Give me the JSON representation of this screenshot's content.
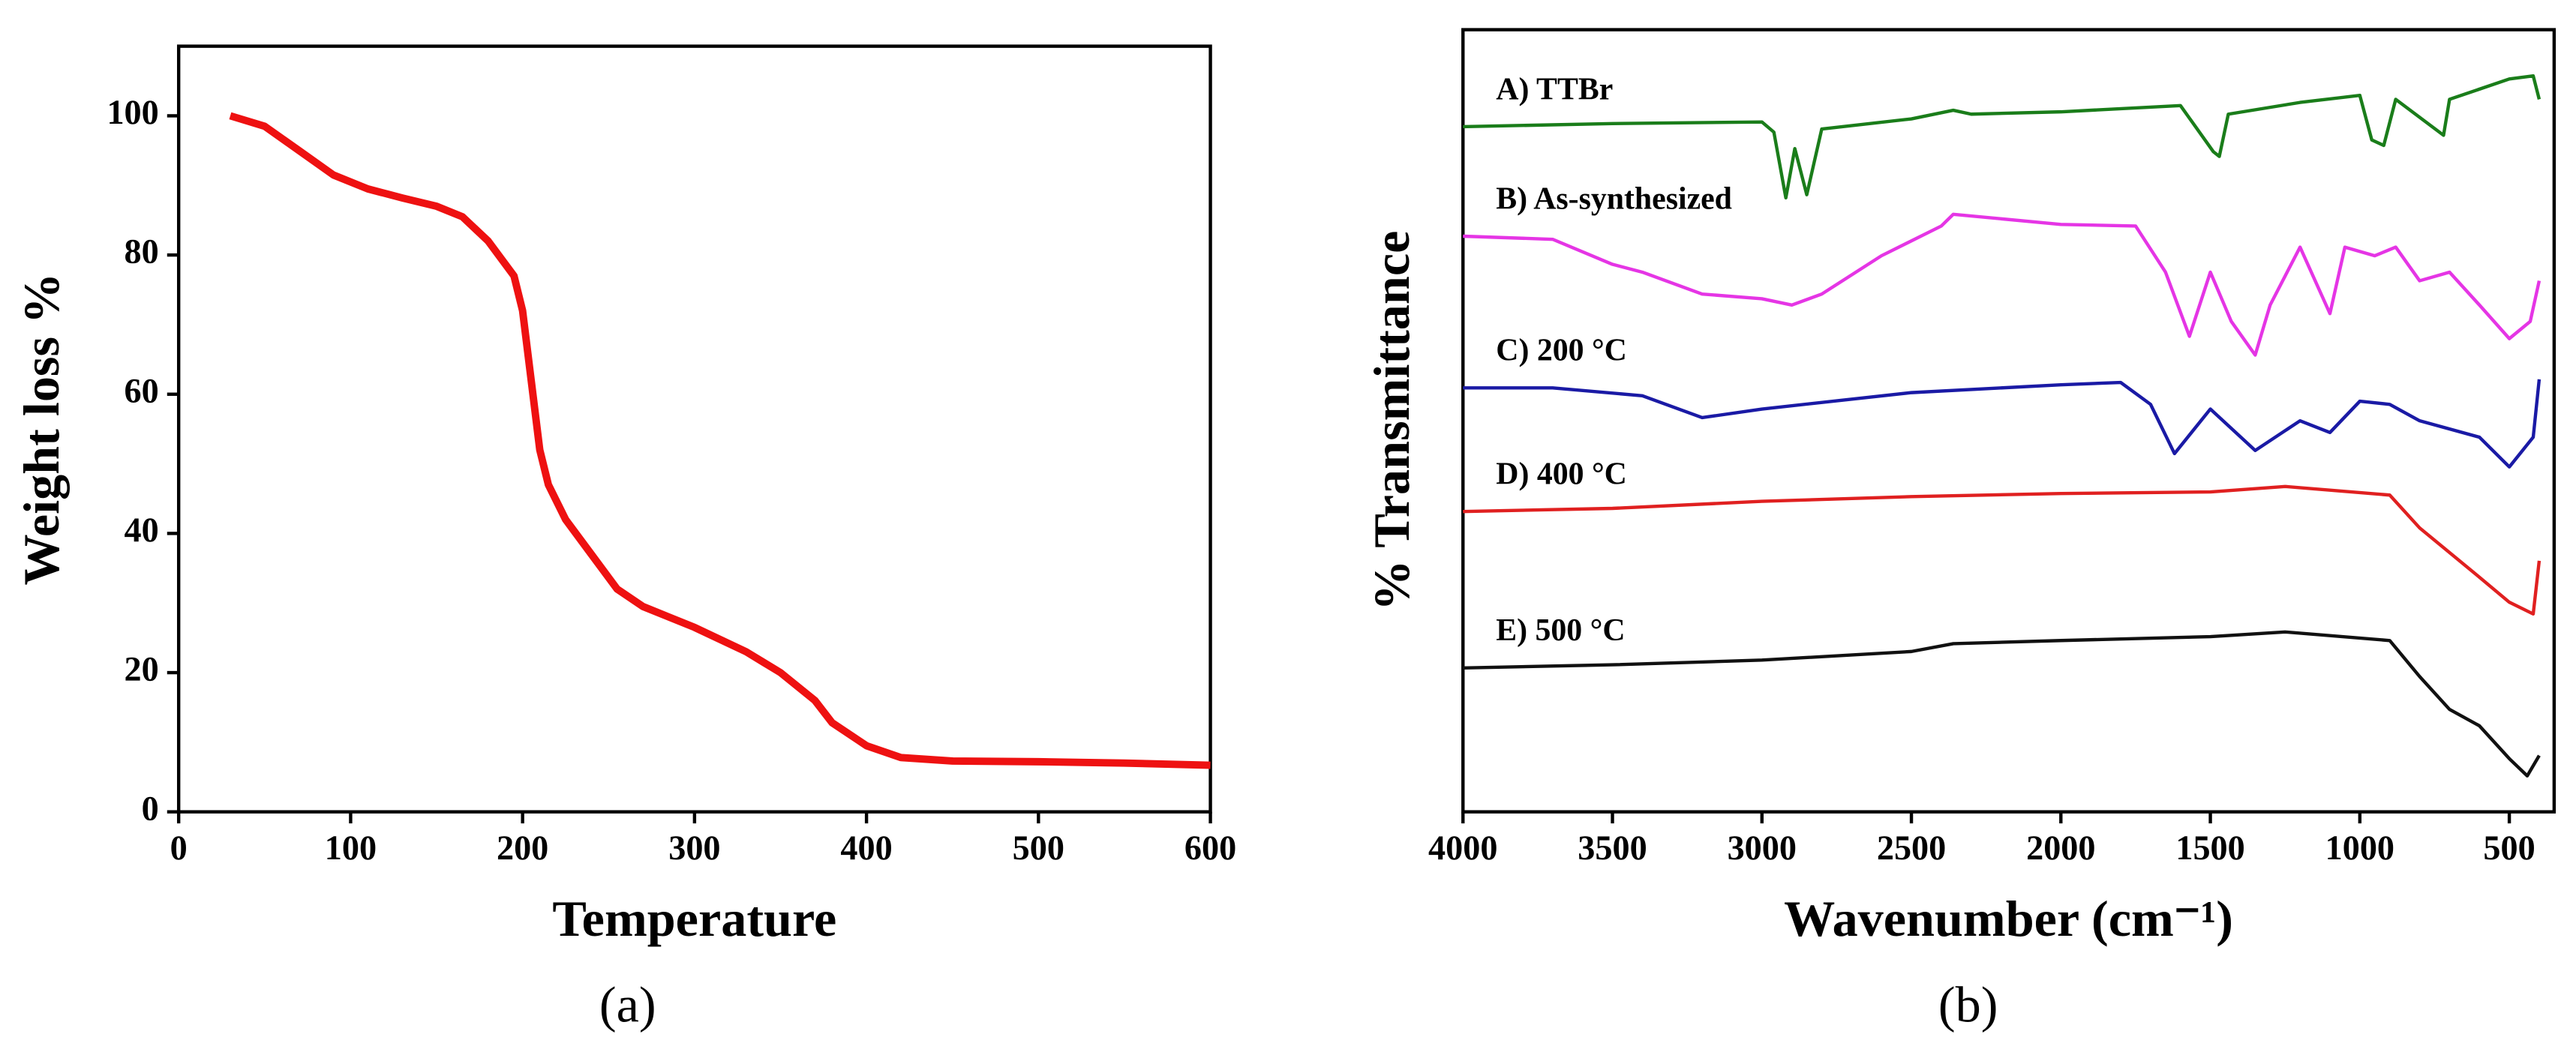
{
  "chart_data": [
    {
      "type": "line",
      "caption": "(a)",
      "xlabel": "Temperature",
      "ylabel": "Weight loss %",
      "xlim": [
        0,
        600
      ],
      "ylim": [
        0,
        110
      ],
      "xticks": [
        0,
        100,
        200,
        300,
        400,
        500,
        600
      ],
      "yticks": [
        0,
        20,
        40,
        60,
        80,
        100
      ],
      "series": [
        {
          "name": null,
          "color": "#ee1111",
          "x": [
            30,
            50,
            70,
            90,
            110,
            130,
            150,
            165,
            180,
            195,
            200,
            205,
            210,
            215,
            225,
            240,
            255,
            270,
            300,
            330,
            350,
            370,
            380,
            400,
            420,
            450,
            500,
            550,
            600
          ],
          "values": [
            100,
            98.5,
            95,
            91.5,
            89.5,
            88.2,
            87,
            85.5,
            82,
            77,
            72,
            62,
            52,
            47,
            42,
            37,
            32,
            29.5,
            26.5,
            23,
            20,
            16,
            12.8,
            9.5,
            7.8,
            7.3,
            7.2,
            7,
            6.7
          ]
        }
      ]
    },
    {
      "type": "line",
      "caption": "(b)",
      "xlabel": "Wavenumber (cm⁻¹)",
      "ylabel": "% Transmittance",
      "xlim": [
        4000,
        350
      ],
      "ylim": [
        0,
        100
      ],
      "xticks": [
        4000,
        3500,
        3000,
        2500,
        2000,
        1500,
        1000,
        500
      ],
      "series": [
        {
          "name": "A) TTBr",
          "color": "#1a7d1a",
          "x": [
            4000,
            3500,
            3000,
            2960,
            2920,
            2890,
            2850,
            2800,
            2500,
            2360,
            2300,
            2000,
            1600,
            1490,
            1470,
            1440,
            1200,
            1000,
            960,
            920,
            880,
            720,
            700,
            500,
            420,
            400
          ],
          "values": [
            87.6,
            88,
            88.2,
            86.9,
            78.5,
            84.8,
            78.9,
            87.3,
            88.6,
            89.7,
            89.2,
            89.5,
            90.3,
            84.4,
            83.8,
            89.2,
            90.7,
            91.6,
            85.9,
            85.2,
            91.1,
            86.5,
            91.1,
            93.7,
            94.1,
            91.1
          ]
        },
        {
          "name": "B) As-synthesized",
          "color": "#e535e5",
          "x": [
            4000,
            3700,
            3500,
            3400,
            3200,
            3000,
            2900,
            2800,
            2600,
            2400,
            2360,
            2000,
            1750,
            1650,
            1570,
            1500,
            1430,
            1350,
            1300,
            1200,
            1100,
            1050,
            950,
            880,
            800,
            700,
            600,
            500,
            430,
            400
          ],
          "values": [
            73.6,
            73.2,
            70,
            69,
            66.2,
            65.6,
            64.8,
            66.2,
            71.1,
            74.9,
            76.4,
            75.1,
            74.9,
            69,
            60.8,
            69,
            62.7,
            58.4,
            64.8,
            72.2,
            63.7,
            72.2,
            71.1,
            72.2,
            67.9,
            69,
            64.8,
            60.5,
            62.7,
            67.9
          ]
        },
        {
          "name": "C) 200 °C",
          "color": "#1a1aa5",
          "x": [
            4000,
            3700,
            3400,
            3200,
            3000,
            2500,
            2000,
            1800,
            1700,
            1620,
            1500,
            1350,
            1200,
            1100,
            1000,
            900,
            800,
            600,
            500,
            420,
            400
          ],
          "values": [
            54.2,
            54.2,
            53.2,
            50.4,
            51.5,
            53.6,
            54.6,
            54.9,
            52.1,
            45.8,
            51.5,
            46.2,
            50,
            48.5,
            52.5,
            52.1,
            50,
            47.9,
            44.1,
            47.9,
            55.3
          ]
        },
        {
          "name": "D) 400 °C",
          "color": "#e02020",
          "x": [
            4000,
            3500,
            3000,
            2500,
            2000,
            1500,
            1250,
            900,
            800,
            600,
            500,
            420,
            400
          ],
          "values": [
            38.4,
            38.8,
            39.7,
            40.3,
            40.7,
            40.9,
            41.6,
            40.5,
            36.3,
            30,
            26.8,
            25.3,
            32.1
          ]
        },
        {
          "name": "E) 500 °C",
          "color": "#111111",
          "x": [
            4000,
            3500,
            3000,
            2500,
            2360,
            2000,
            1500,
            1250,
            900,
            800,
            700,
            600,
            500,
            440,
            400
          ],
          "values": [
            18.4,
            18.8,
            19.4,
            20.5,
            21.5,
            21.9,
            22.4,
            23,
            21.9,
            17.3,
            13.1,
            11,
            6.8,
            4.6,
            7.2
          ]
        }
      ]
    }
  ]
}
